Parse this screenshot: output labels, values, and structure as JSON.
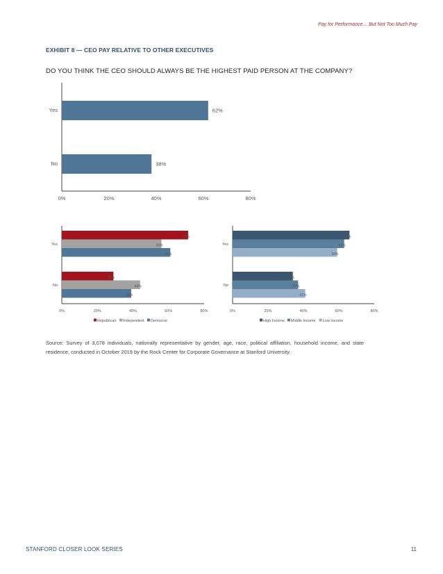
{
  "header": {
    "running_title": "Pay for Performance… But Not Too Much Pay"
  },
  "exhibit": {
    "title": "EXHIBIT 8 — CEO PAY RELATIVE TO OTHER EXECUTIVES",
    "question": "DO YOU THINK THE CEO SHOULD ALWAYS BE THE HIGHEST PAID PERSON AT THE COMPANY?"
  },
  "chart_data": [
    {
      "type": "bar",
      "orientation": "horizontal",
      "categories": [
        "Yes",
        "No"
      ],
      "series": [
        {
          "values": [
            62,
            38
          ],
          "color": "#4f7597"
        }
      ],
      "value_labels": [
        "62%",
        "38%"
      ],
      "xlim": [
        0,
        80
      ],
      "xticks": [
        "0%",
        "20%",
        "40%",
        "60%",
        "80%"
      ],
      "grid": false
    },
    {
      "type": "bar",
      "orientation": "horizontal",
      "categories": [
        "Yes",
        "No"
      ],
      "series": [
        {
          "name": "Republican",
          "values": [
            71,
            29
          ],
          "labels": [
            "71%",
            "29%"
          ],
          "color": "#a4141f"
        },
        {
          "name": "Independent",
          "values": [
            56,
            44
          ],
          "labels": [
            "56%",
            "44%"
          ],
          "color": "#a3a3a3"
        },
        {
          "name": "Democrat",
          "values": [
            61,
            39
          ],
          "labels": [
            "61%",
            "39%"
          ],
          "color": "#4f7597"
        }
      ],
      "xlim": [
        0,
        80
      ],
      "xticks": [
        "0%",
        "20%",
        "40%",
        "60%",
        "80%"
      ],
      "legend_position": "bottom",
      "grid": false
    },
    {
      "type": "bar",
      "orientation": "horizontal",
      "categories": [
        "Yes",
        "No"
      ],
      "series": [
        {
          "name": "High Income",
          "values": [
            66,
            34
          ],
          "labels": [
            "66%",
            "34%"
          ],
          "color": "#3a5670"
        },
        {
          "name": "Middle Income",
          "values": [
            63,
            37
          ],
          "labels": [
            "63%",
            "37%"
          ],
          "color": "#5c7f9e"
        },
        {
          "name": "Low Income",
          "values": [
            59,
            41
          ],
          "labels": [
            "59%",
            "41%"
          ],
          "color": "#93afc8"
        }
      ],
      "xlim": [
        0,
        80
      ],
      "xticks": [
        "0%",
        "20%",
        "40%",
        "60%",
        "80%"
      ],
      "legend_position": "bottom",
      "grid": false
    }
  ],
  "source": "Source: Survey of 3,078 individuals, nationally representative by gender, age, race, political affiliation, household income, and state residence, conducted in October 2019 by the Rock Center for Corporate Governance at Stanford University.",
  "footer": {
    "series_name": "STANFORD CLOSER LOOK SERIES",
    "page_number": "11"
  }
}
